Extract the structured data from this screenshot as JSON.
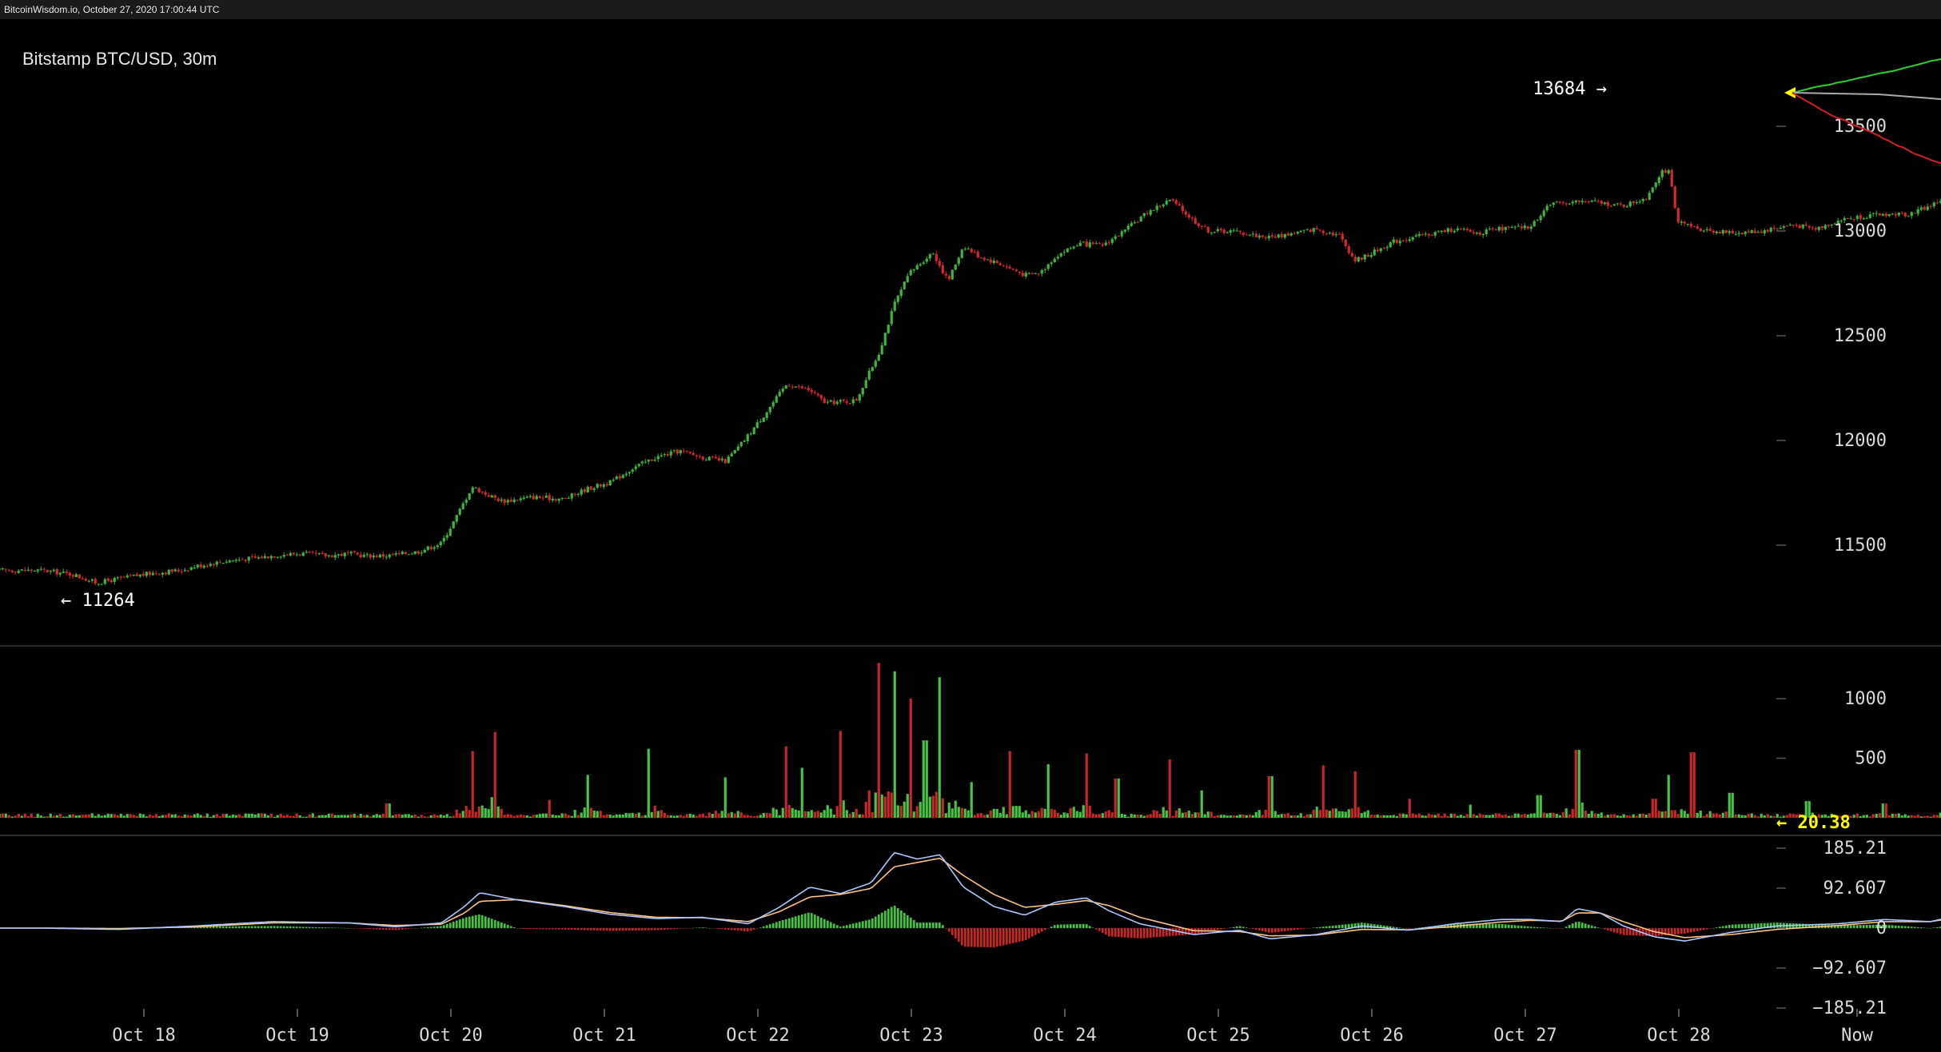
{
  "page_header": "BitcoinWisdom.io, October 27, 2020 17:00:44 UTC",
  "chart_title": "Bitstamp BTC/USD, 30m",
  "colors": {
    "up": "#3fb43a",
    "down": "#d42a2a",
    "volume_up": "#48c244",
    "volume_down": "#c52828",
    "macd_line": "#a9c8ff",
    "signal_line": "#ffc27a",
    "highlight": "#ffff00",
    "axis_text": "#d9d9d9",
    "separator": "#3a3a3a"
  },
  "chart_data": [
    {
      "type": "candlestick",
      "name": "price",
      "title": "Bitstamp BTC/USD, 30m",
      "x_domain": [
        "Oct 18",
        "Oct 28"
      ],
      "ylim": [
        11190,
        13790
      ],
      "y_ticks": [
        11500,
        12000,
        12500,
        13000,
        13500
      ],
      "x_ticks": [
        "Oct 18",
        "Oct 19",
        "Oct 20",
        "Oct 21",
        "Oct 22",
        "Oct 23",
        "Oct 24",
        "Oct 25",
        "Oct 26",
        "Oct 27",
        "Oct 28",
        "Now"
      ],
      "annotations": [
        {
          "text": "← 11264",
          "value": 11264
        },
        {
          "text": "13684 →",
          "value": 13684
        }
      ],
      "close_path_day_offset_vs_close": [
        [
          0.0,
          11380
        ],
        [
          0.2,
          11360
        ],
        [
          0.35,
          11320
        ],
        [
          0.5,
          11340
        ],
        [
          0.7,
          11365
        ],
        [
          0.9,
          11380
        ],
        [
          1.0,
          11400
        ],
        [
          1.2,
          11425
        ],
        [
          1.4,
          11440
        ],
        [
          1.55,
          11455
        ],
        [
          1.7,
          11460
        ],
        [
          1.85,
          11450
        ],
        [
          2.0,
          11460
        ],
        [
          2.1,
          11450
        ],
        [
          2.25,
          11450
        ],
        [
          2.45,
          11470
        ],
        [
          2.6,
          11510
        ],
        [
          2.7,
          11640
        ],
        [
          2.8,
          11780
        ],
        [
          2.9,
          11740
        ],
        [
          3.0,
          11710
        ],
        [
          3.2,
          11730
        ],
        [
          3.4,
          11720
        ],
        [
          3.55,
          11770
        ],
        [
          3.7,
          11800
        ],
        [
          3.85,
          11870
        ],
        [
          4.0,
          11920
        ],
        [
          4.15,
          11950
        ],
        [
          4.3,
          11920
        ],
        [
          4.45,
          11900
        ],
        [
          4.55,
          11980
        ],
        [
          4.7,
          12120
        ],
        [
          4.85,
          12270
        ],
        [
          5.0,
          12240
        ],
        [
          5.1,
          12180
        ],
        [
          5.3,
          12190
        ],
        [
          5.45,
          12420
        ],
        [
          5.55,
          12650
        ],
        [
          5.65,
          12800
        ],
        [
          5.8,
          12900
        ],
        [
          5.9,
          12760
        ],
        [
          6.0,
          12930
        ],
        [
          6.1,
          12880
        ],
        [
          6.25,
          12840
        ],
        [
          6.4,
          12790
        ],
        [
          6.5,
          12800
        ],
        [
          6.6,
          12880
        ],
        [
          6.75,
          12940
        ],
        [
          6.9,
          12930
        ],
        [
          7.05,
          13000
        ],
        [
          7.2,
          13090
        ],
        [
          7.35,
          13150
        ],
        [
          7.5,
          13050
        ],
        [
          7.6,
          13000
        ],
        [
          7.75,
          13000
        ],
        [
          7.9,
          12980
        ],
        [
          8.0,
          12970
        ],
        [
          8.15,
          12990
        ],
        [
          8.3,
          13010
        ],
        [
          8.45,
          12980
        ],
        [
          8.55,
          12860
        ],
        [
          8.65,
          12890
        ],
        [
          8.8,
          12950
        ],
        [
          9.0,
          12980
        ],
        [
          9.2,
          13010
        ],
        [
          9.35,
          12990
        ],
        [
          9.5,
          13010
        ],
        [
          9.7,
          13020
        ],
        [
          9.8,
          13120
        ],
        [
          9.95,
          13140
        ],
        [
          10.1,
          13140
        ],
        [
          10.3,
          13120
        ],
        [
          10.45,
          13160
        ],
        [
          10.55,
          13290
        ],
        [
          10.6,
          13280
        ],
        [
          10.65,
          13040
        ],
        [
          10.8,
          13010
        ],
        [
          11.0,
          12990
        ],
        [
          11.2,
          13000
        ],
        [
          11.4,
          13030
        ],
        [
          11.55,
          13010
        ],
        [
          11.7,
          13050
        ],
        [
          11.85,
          13070
        ],
        [
          12.0,
          13080
        ],
        [
          12.15,
          13080
        ],
        [
          12.3,
          13120
        ],
        [
          12.4,
          13160
        ],
        [
          12.5,
          13210
        ],
        [
          12.6,
          13170
        ],
        [
          12.7,
          12990
        ],
        [
          12.8,
          12880
        ],
        [
          12.9,
          12990
        ],
        [
          13.0,
          13050
        ],
        [
          13.2,
          13100
        ],
        [
          13.4,
          13120
        ],
        [
          13.6,
          13130
        ],
        [
          13.7,
          13110
        ],
        [
          13.8,
          13140
        ],
        [
          13.9,
          13200
        ],
        [
          14.0,
          13260
        ],
        [
          14.05,
          13440
        ],
        [
          14.2,
          13420
        ],
        [
          14.3,
          13380
        ],
        [
          14.4,
          13520
        ],
        [
          14.5,
          13610
        ],
        [
          14.57,
          13684
        ]
      ]
    },
    {
      "type": "bar",
      "name": "volume",
      "ylim": [
        0,
        1460
      ],
      "y_ticks": [
        500,
        1000
      ],
      "annotations": [
        {
          "text": "← 20.38",
          "value": 20.38
        }
      ],
      "peak_spikes_day_offset_vs_volume": [
        [
          2.25,
          120
        ],
        [
          2.8,
          560
        ],
        [
          2.95,
          720
        ],
        [
          3.3,
          150
        ],
        [
          3.55,
          360
        ],
        [
          3.95,
          580
        ],
        [
          4.45,
          340
        ],
        [
          4.85,
          600
        ],
        [
          4.95,
          420
        ],
        [
          5.2,
          730
        ],
        [
          5.45,
          1300
        ],
        [
          5.55,
          1230
        ],
        [
          5.65,
          1000
        ],
        [
          5.75,
          650
        ],
        [
          5.85,
          1180
        ],
        [
          6.05,
          300
        ],
        [
          6.3,
          560
        ],
        [
          6.55,
          450
        ],
        [
          6.8,
          540
        ],
        [
          7.0,
          330
        ],
        [
          7.35,
          490
        ],
        [
          7.55,
          230
        ],
        [
          8.0,
          350
        ],
        [
          8.35,
          440
        ],
        [
          8.55,
          390
        ],
        [
          8.9,
          160
        ],
        [
          9.3,
          110
        ],
        [
          9.75,
          190
        ],
        [
          10.0,
          570
        ],
        [
          10.5,
          160
        ],
        [
          10.6,
          360
        ],
        [
          10.75,
          550
        ],
        [
          11.0,
          210
        ],
        [
          11.5,
          140
        ],
        [
          12.0,
          120
        ],
        [
          12.45,
          220
        ],
        [
          12.5,
          440
        ],
        [
          12.65,
          390
        ],
        [
          12.75,
          340
        ],
        [
          13.0,
          130
        ],
        [
          13.45,
          240
        ],
        [
          13.95,
          290
        ],
        [
          14.05,
          1140
        ],
        [
          14.15,
          410
        ],
        [
          14.25,
          330
        ],
        [
          14.4,
          570
        ],
        [
          14.5,
          140
        ],
        [
          14.57,
          20
        ]
      ]
    },
    {
      "type": "line",
      "name": "macd",
      "ylim": [
        -210,
        215
      ],
      "y_ticks": [
        185.21,
        92.607,
        0,
        -92.607,
        -185.21
      ],
      "macd_day_offset_vs_value": [
        [
          0.0,
          0
        ],
        [
          0.5,
          -3
        ],
        [
          1.0,
          5
        ],
        [
          1.5,
          15
        ],
        [
          2.0,
          12
        ],
        [
          2.3,
          3
        ],
        [
          2.6,
          12
        ],
        [
          2.75,
          50
        ],
        [
          2.85,
          82
        ],
        [
          3.1,
          65
        ],
        [
          3.4,
          50
        ],
        [
          3.7,
          32
        ],
        [
          4.0,
          22
        ],
        [
          4.3,
          25
        ],
        [
          4.6,
          10
        ],
        [
          4.8,
          48
        ],
        [
          5.0,
          95
        ],
        [
          5.2,
          80
        ],
        [
          5.4,
          105
        ],
        [
          5.55,
          175
        ],
        [
          5.7,
          160
        ],
        [
          5.85,
          170
        ],
        [
          6.0,
          95
        ],
        [
          6.2,
          50
        ],
        [
          6.4,
          30
        ],
        [
          6.6,
          60
        ],
        [
          6.8,
          70
        ],
        [
          6.95,
          40
        ],
        [
          7.15,
          10
        ],
        [
          7.5,
          -15
        ],
        [
          7.8,
          -5
        ],
        [
          8.0,
          -25
        ],
        [
          8.3,
          -15
        ],
        [
          8.6,
          5
        ],
        [
          8.9,
          -5
        ],
        [
          9.2,
          10
        ],
        [
          9.5,
          20
        ],
        [
          9.7,
          20
        ],
        [
          9.9,
          15
        ],
        [
          10.0,
          45
        ],
        [
          10.15,
          35
        ],
        [
          10.3,
          5
        ],
        [
          10.5,
          -20
        ],
        [
          10.7,
          -30
        ],
        [
          11.0,
          -10
        ],
        [
          11.3,
          5
        ],
        [
          11.7,
          10
        ],
        [
          12.0,
          20
        ],
        [
          12.3,
          15
        ],
        [
          12.55,
          35
        ],
        [
          12.7,
          -10
        ],
        [
          12.85,
          -40
        ],
        [
          13.0,
          -25
        ],
        [
          13.3,
          5
        ],
        [
          13.6,
          10
        ],
        [
          13.85,
          20
        ],
        [
          14.05,
          60
        ],
        [
          14.3,
          85
        ],
        [
          14.57,
          120
        ]
      ],
      "signal_day_offset_vs_value": [
        [
          0.0,
          0
        ],
        [
          0.5,
          -1
        ],
        [
          1.0,
          3
        ],
        [
          1.5,
          12
        ],
        [
          2.0,
          12
        ],
        [
          2.3,
          6
        ],
        [
          2.6,
          9
        ],
        [
          2.75,
          35
        ],
        [
          2.85,
          62
        ],
        [
          3.1,
          66
        ],
        [
          3.4,
          52
        ],
        [
          3.7,
          36
        ],
        [
          4.0,
          25
        ],
        [
          4.3,
          24
        ],
        [
          4.6,
          15
        ],
        [
          4.8,
          38
        ],
        [
          5.0,
          72
        ],
        [
          5.2,
          78
        ],
        [
          5.4,
          92
        ],
        [
          5.55,
          142
        ],
        [
          5.7,
          152
        ],
        [
          5.85,
          162
        ],
        [
          6.0,
          122
        ],
        [
          6.2,
          78
        ],
        [
          6.4,
          48
        ],
        [
          6.6,
          55
        ],
        [
          6.8,
          64
        ],
        [
          6.95,
          52
        ],
        [
          7.15,
          25
        ],
        [
          7.5,
          -6
        ],
        [
          7.8,
          -8
        ],
        [
          8.0,
          -18
        ],
        [
          8.3,
          -16
        ],
        [
          8.6,
          -3
        ],
        [
          8.9,
          -4
        ],
        [
          9.2,
          4
        ],
        [
          9.5,
          14
        ],
        [
          9.7,
          18
        ],
        [
          9.9,
          16
        ],
        [
          10.0,
          35
        ],
        [
          10.15,
          35
        ],
        [
          10.3,
          15
        ],
        [
          10.5,
          -8
        ],
        [
          10.7,
          -22
        ],
        [
          11.0,
          -15
        ],
        [
          11.3,
          -3
        ],
        [
          11.7,
          6
        ],
        [
          12.0,
          15
        ],
        [
          12.3,
          15
        ],
        [
          12.55,
          28
        ],
        [
          12.7,
          5
        ],
        [
          12.85,
          -28
        ],
        [
          13.0,
          -25
        ],
        [
          13.3,
          -5
        ],
        [
          13.6,
          6
        ],
        [
          13.85,
          15
        ],
        [
          14.05,
          45
        ],
        [
          14.3,
          70
        ],
        [
          14.57,
          100
        ]
      ]
    }
  ]
}
